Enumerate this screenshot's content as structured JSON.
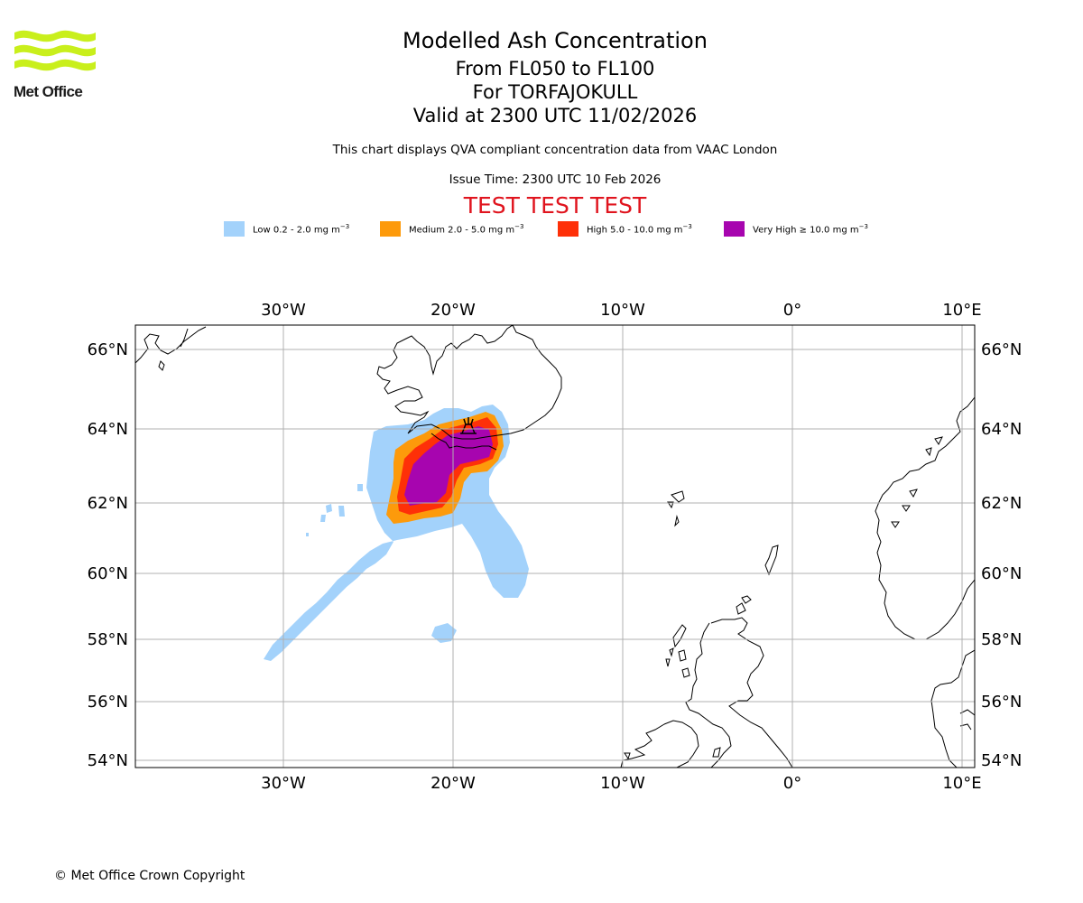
{
  "header": {
    "logo_text": "Met Office",
    "title": "Modelled Ash Concentration",
    "levels": "From FL050 to FL100",
    "volcano": "For TORFAJOKULL",
    "valid": "Valid at 2300 UTC 11/02/2026",
    "note": "This chart displays QVA compliant concentration data from VAAC London",
    "issue": "Issue Time: 2300 UTC 10 Feb 2026",
    "test": "TEST TEST TEST"
  },
  "legend": [
    {
      "label": "Low 0.2 - 2.0 mg m",
      "exp": "−3",
      "color": "#a3d2fb"
    },
    {
      "label": "Medium 2.0 - 5.0 mg m",
      "exp": "−3",
      "color": "#fd9a0b"
    },
    {
      "label": "High 5.0 - 10.0 mg m",
      "exp": "−3",
      "color": "#fe3008"
    },
    {
      "label": "Very High  ≥  10.0 mg m",
      "exp": "−3",
      "color": "#a705af"
    }
  ],
  "map": {
    "lon_ticks": [
      "30°W",
      "20°W",
      "10°W",
      "0°",
      "10°E"
    ],
    "lat_ticks": [
      "66°N",
      "64°N",
      "62°N",
      "60°N",
      "58°N",
      "56°N",
      "54°N"
    ],
    "lon_values": [
      -30,
      -20,
      -10,
      0,
      10
    ],
    "lat_values": [
      66,
      64,
      62,
      60,
      58,
      56,
      54
    ],
    "coast_color": "#000000",
    "grid_color": "#b0b0b0"
  },
  "footer": {
    "copyright": "© Met Office Crown Copyright"
  }
}
